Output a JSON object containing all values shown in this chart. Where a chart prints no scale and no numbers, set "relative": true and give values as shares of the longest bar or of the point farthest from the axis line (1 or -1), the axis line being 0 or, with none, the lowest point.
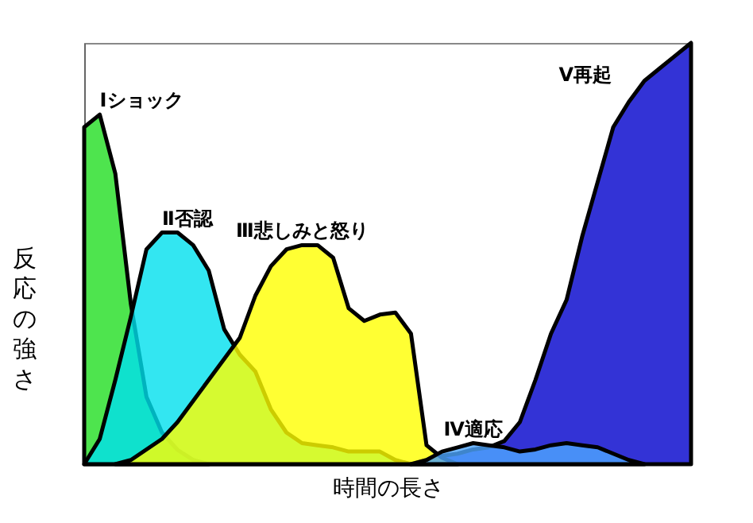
{
  "chart_data": {
    "type": "area",
    "relative": true,
    "xlabel": "時間の長さ",
    "ylabel": "反応の強さ",
    "legend": false,
    "tick_labels": false,
    "categories": [
      null,
      null,
      null,
      null,
      null,
      null,
      null,
      null,
      null,
      null,
      null,
      null,
      null,
      null,
      null,
      null,
      null,
      null,
      null,
      null,
      null,
      null,
      null,
      null,
      null,
      null,
      null,
      null,
      null,
      null,
      null,
      null,
      null,
      null,
      null,
      null,
      null,
      null,
      null,
      null
    ],
    "series": [
      {
        "name": "Ⅰショック",
        "color": "#22dd22",
        "values": [
          0.8,
          0.83,
          0.69,
          0.38,
          0.16,
          0.075,
          0.034,
          0.01,
          0,
          null,
          null,
          null,
          null,
          null,
          null,
          null,
          null,
          null,
          null,
          null,
          null,
          null,
          null,
          null,
          null,
          null,
          null,
          null,
          null,
          null,
          null,
          null,
          null,
          null,
          null,
          null,
          null,
          null,
          null,
          null
        ]
      },
      {
        "name": "Ⅱ否認",
        "color": "#00e0ee",
        "values": [
          0,
          0.06,
          0.2,
          0.35,
          0.51,
          0.55,
          0.55,
          0.52,
          0.46,
          0.32,
          0.26,
          0.22,
          0.13,
          0.075,
          0.05,
          0.045,
          0.04,
          0.03,
          0.03,
          0.03,
          0.01,
          0,
          null,
          null,
          null,
          null,
          null,
          null,
          null,
          null,
          null,
          null,
          null,
          null,
          null,
          null,
          null,
          null,
          null,
          null
        ]
      },
      {
        "name": "Ⅲ悲しみと怒り",
        "color": "#ffff00",
        "values": [
          null,
          null,
          0,
          0.01,
          0.035,
          0.06,
          0.1,
          0.15,
          0.2,
          0.25,
          0.3,
          0.4,
          0.47,
          0.51,
          0.52,
          0.52,
          0.49,
          0.37,
          0.34,
          0.355,
          0.36,
          0.31,
          0.045,
          0.015,
          0,
          null,
          null,
          null,
          null,
          null,
          null,
          null,
          null,
          null,
          null,
          null,
          null,
          null,
          null,
          null
        ]
      },
      {
        "name": "Ⅳ適応",
        "color": "#4da6ff",
        "values": [
          null,
          null,
          null,
          null,
          null,
          null,
          null,
          null,
          null,
          null,
          null,
          null,
          null,
          null,
          null,
          null,
          null,
          null,
          null,
          null,
          null,
          0,
          0.01,
          0.03,
          0.04,
          0.05,
          0.045,
          0.04,
          0.03,
          0.035,
          0.045,
          0.05,
          0.045,
          0.04,
          0.025,
          0.01,
          0,
          null,
          null,
          null
        ]
      },
      {
        "name": "Ⅴ再起",
        "color": "#0000cc",
        "values": [
          null,
          null,
          null,
          null,
          null,
          null,
          null,
          null,
          null,
          null,
          null,
          null,
          null,
          null,
          null,
          null,
          null,
          null,
          null,
          null,
          null,
          0,
          0.01,
          0.02,
          0.025,
          0.035,
          0.04,
          0.055,
          0.1,
          0.2,
          0.31,
          0.39,
          0.54,
          0.67,
          0.8,
          0.86,
          0.91,
          0.94,
          0.97,
          1
        ]
      }
    ]
  }
}
